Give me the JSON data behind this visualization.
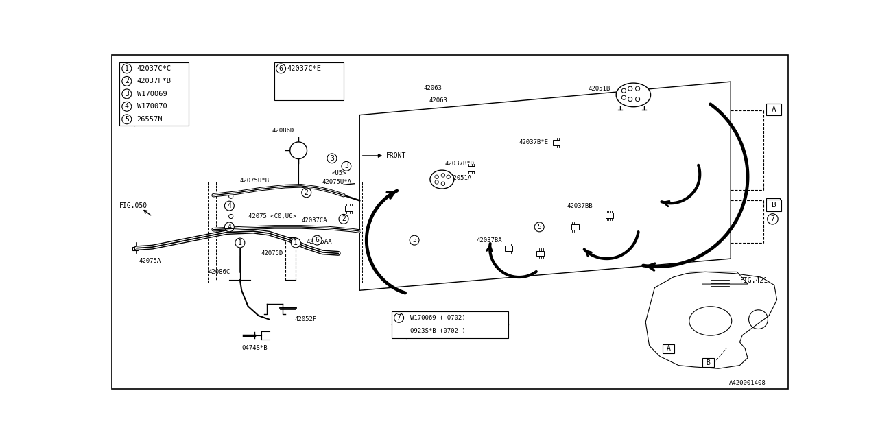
{
  "bg_color": "#ffffff",
  "line_color": "#000000",
  "fig_width": 12.8,
  "fig_height": 6.4,
  "legend_items": [
    {
      "num": "1",
      "part": "42037C*C"
    },
    {
      "num": "2",
      "part": "42037F*B"
    },
    {
      "num": "3",
      "part": "W170069"
    },
    {
      "num": "4",
      "part": "W170070"
    },
    {
      "num": "5",
      "part": "26557N"
    }
  ]
}
